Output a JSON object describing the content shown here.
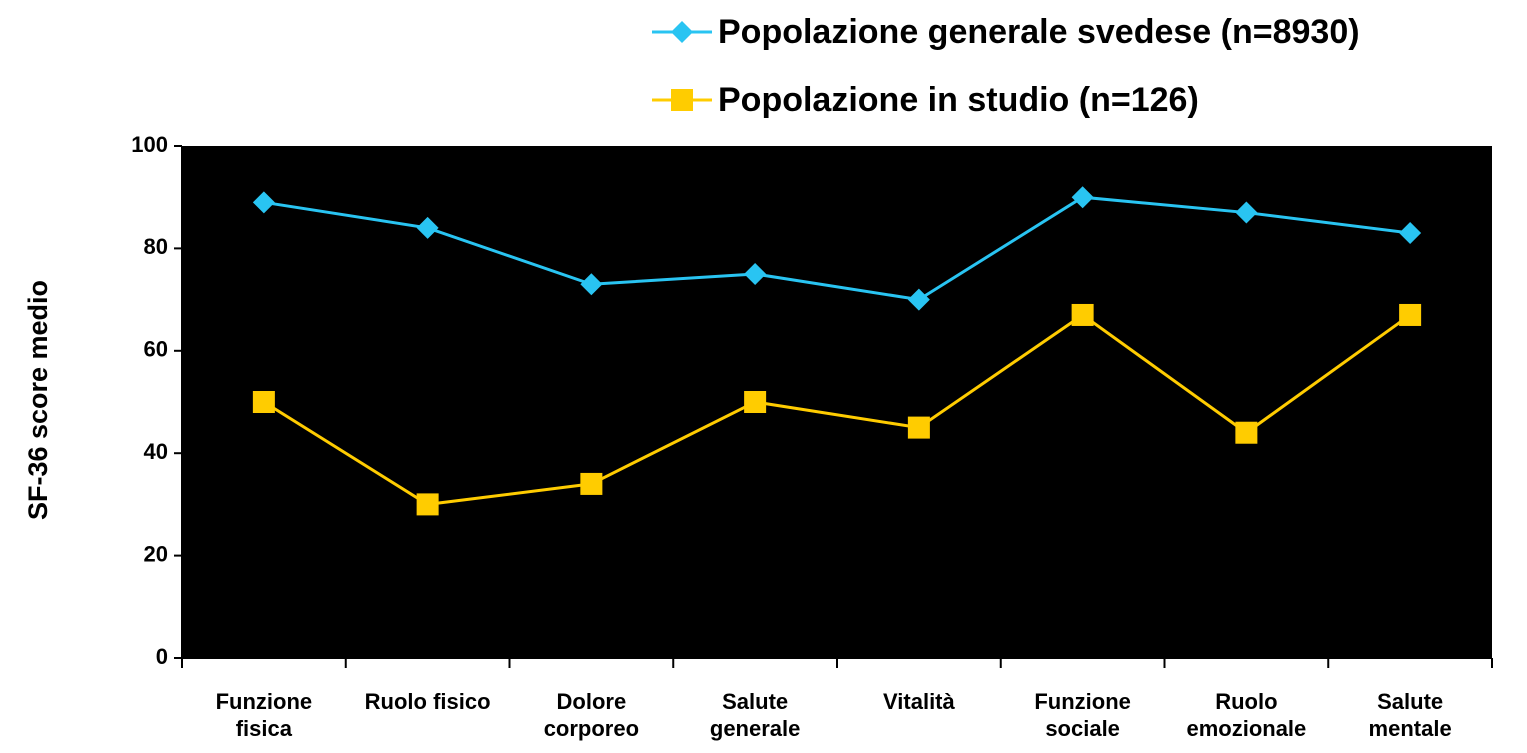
{
  "chart_data": {
    "type": "line",
    "y_label": "SF-36 score medio",
    "categories": [
      "Funzione fisica",
      "Ruolo fisico",
      "Dolore corporeo",
      "Salute generale",
      "Vitalità",
      "Funzione sociale",
      "Ruolo emozionale",
      "Salute mentale"
    ],
    "series": [
      {
        "name": "Popolazione generale svedese (n=8930)",
        "color": "#29c4f2",
        "marker": "diamond",
        "values": [
          89,
          84,
          73,
          75,
          70,
          90,
          87,
          83
        ]
      },
      {
        "name": "Popolazione in studio (n=126)",
        "color": "#ffcc00",
        "marker": "square",
        "values": [
          50,
          30,
          34,
          50,
          45,
          67,
          44,
          67
        ]
      }
    ],
    "ylim": [
      0,
      100
    ],
    "yticks": [
      0,
      20,
      40,
      60,
      80,
      100
    ],
    "legend": "top",
    "plot_background": "#000000"
  }
}
